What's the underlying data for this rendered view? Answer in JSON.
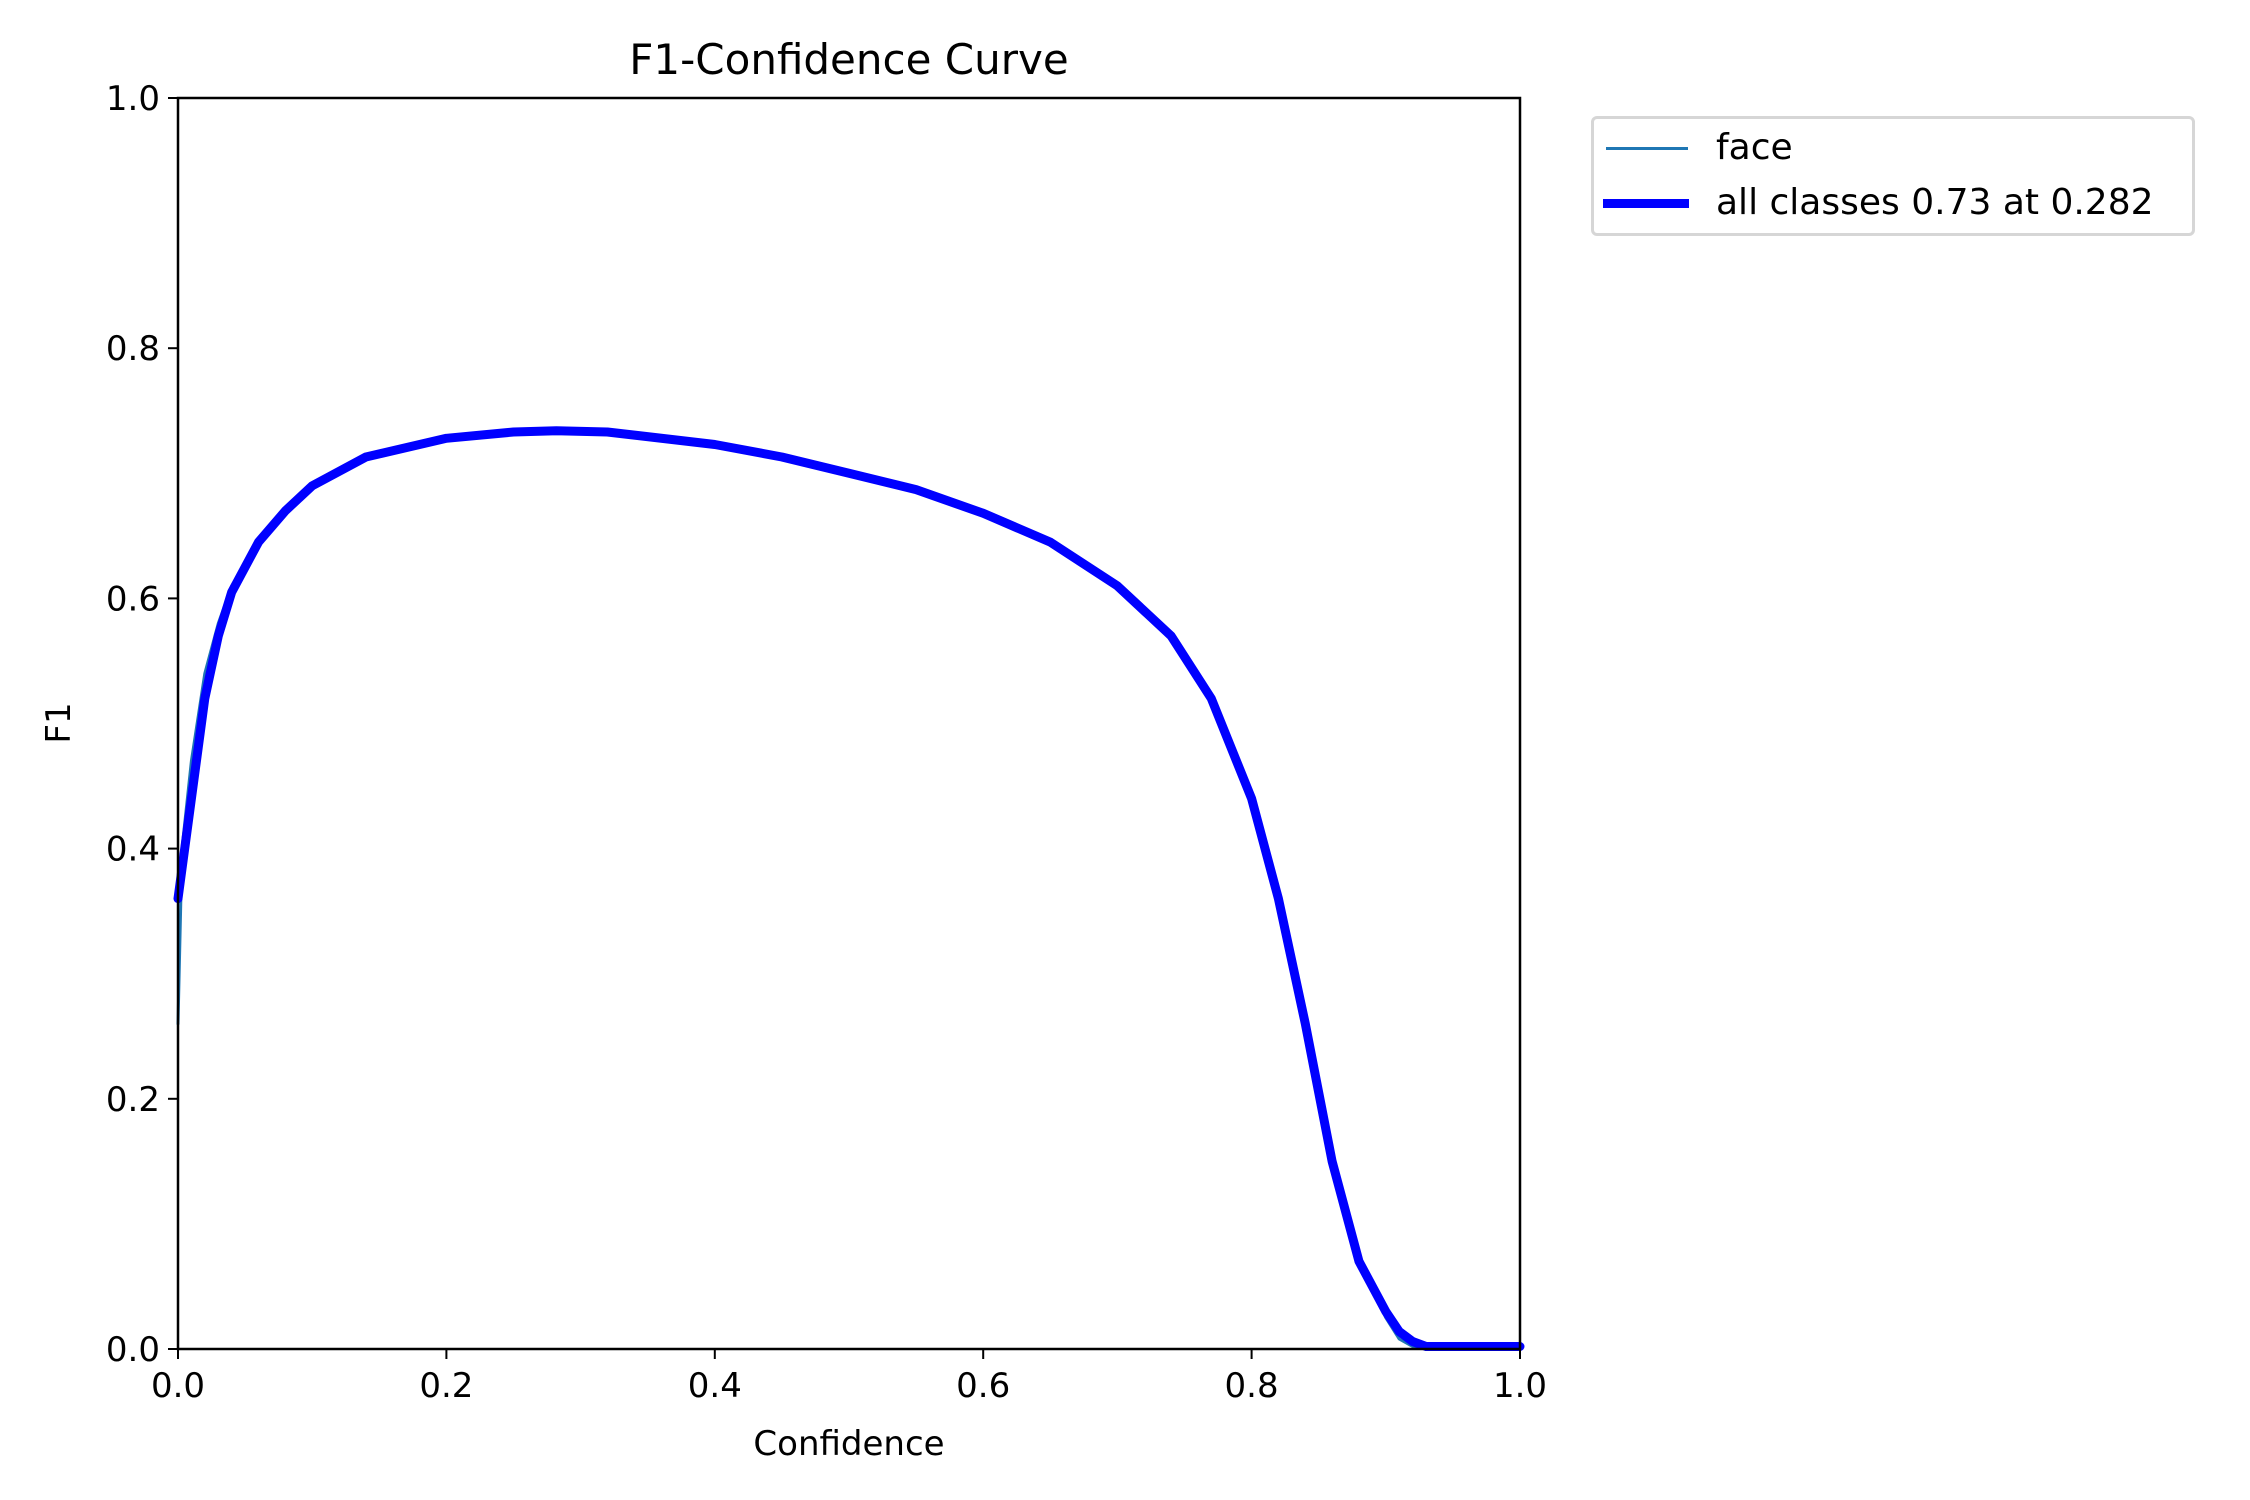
{
  "chart_data": {
    "type": "line",
    "title": "F1-Confidence Curve",
    "xlabel": "Confidence",
    "ylabel": "F1",
    "xlim": [
      0,
      1
    ],
    "ylim": [
      0,
      1
    ],
    "xticks": [
      "0.0",
      "0.2",
      "0.4",
      "0.6",
      "0.8",
      "1.0"
    ],
    "yticks": [
      "0.0",
      "0.2",
      "0.4",
      "0.6",
      "0.8",
      "1.0"
    ],
    "grid": false,
    "legend_position": "outside upper right",
    "series": [
      {
        "name": "face",
        "color": "#1f77b4",
        "linewidth": 3,
        "x": [
          0.0,
          0.003,
          0.01,
          0.02,
          0.03,
          0.04,
          0.06,
          0.08,
          0.1,
          0.14,
          0.2,
          0.25,
          0.28,
          0.32,
          0.4,
          0.45,
          0.5,
          0.55,
          0.6,
          0.65,
          0.7,
          0.74,
          0.77,
          0.8,
          0.82,
          0.84,
          0.86,
          0.88,
          0.9,
          0.91,
          0.92,
          0.93,
          0.96,
          1.0
        ],
        "y": [
          0.26,
          0.4,
          0.47,
          0.54,
          0.58,
          0.61,
          0.645,
          0.67,
          0.69,
          0.713,
          0.728,
          0.733,
          0.734,
          0.733,
          0.723,
          0.713,
          0.7,
          0.687,
          0.668,
          0.645,
          0.61,
          0.57,
          0.52,
          0.44,
          0.36,
          0.26,
          0.15,
          0.07,
          0.025,
          0.008,
          0.002,
          0.0,
          0.0,
          0.0
        ]
      },
      {
        "name": "all classes 0.73 at 0.282",
        "color": "#0000ff",
        "linewidth": 9,
        "x": [
          0.0,
          0.01,
          0.02,
          0.03,
          0.04,
          0.06,
          0.08,
          0.1,
          0.14,
          0.2,
          0.25,
          0.282,
          0.32,
          0.4,
          0.45,
          0.5,
          0.55,
          0.6,
          0.65,
          0.7,
          0.74,
          0.77,
          0.8,
          0.82,
          0.84,
          0.86,
          0.88,
          0.9,
          0.91,
          0.92,
          0.93,
          0.96,
          1.0
        ],
        "y": [
          0.36,
          0.44,
          0.52,
          0.57,
          0.605,
          0.645,
          0.67,
          0.69,
          0.713,
          0.728,
          0.733,
          0.734,
          0.733,
          0.723,
          0.713,
          0.7,
          0.687,
          0.668,
          0.645,
          0.61,
          0.57,
          0.52,
          0.44,
          0.36,
          0.26,
          0.15,
          0.07,
          0.03,
          0.014,
          0.006,
          0.002,
          0.002,
          0.002
        ]
      }
    ],
    "annotations": [
      "all classes 0.73 at 0.282"
    ]
  },
  "legend": {
    "items": [
      {
        "label": "face",
        "color": "#1f77b4"
      },
      {
        "label": "all classes 0.73 at 0.282",
        "color": "#0000ff"
      }
    ]
  }
}
